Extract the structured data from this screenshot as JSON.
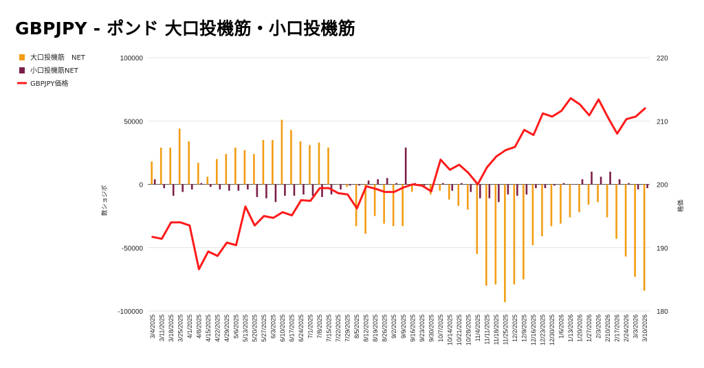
{
  "chart_data": {
    "type": "bar",
    "title": "GBPJPY - ポンド 大口投機筋・小口投機筋",
    "ylabel_left": "数ショジポ",
    "ylabel_right": "格価",
    "ylim_left": [
      -100000,
      100000
    ],
    "ylim_right": [
      180,
      220
    ],
    "yticks_left": [
      "100000",
      "50000",
      "0",
      "-50000",
      "-100000"
    ],
    "yticks_right": [
      "220",
      "210",
      "200",
      "190",
      "180"
    ],
    "grid": true,
    "legend_position": "top-left",
    "categories": [
      "3/4/2025",
      "3/11/2025",
      "3/18/2025",
      "3/25/2025",
      "4/1/2025",
      "4/8/2025",
      "4/15/2025",
      "4/22/2025",
      "4/29/2025",
      "5/6/2025",
      "5/13/2025",
      "5/20/2025",
      "5/27/2025",
      "6/3/2025",
      "6/10/2025",
      "6/17/2025",
      "6/24/2025",
      "7/1/2025",
      "7/8/2025",
      "7/15/2025",
      "7/22/2025",
      "7/29/2025",
      "8/5/2025",
      "8/12/2025",
      "8/19/2025",
      "8/26/2025",
      "9/2/2025",
      "9/9/2025",
      "9/16/2025",
      "9/23/2025",
      "9/30/2025",
      "10/7/2025",
      "10/14/2025",
      "10/21/2025",
      "10/28/2025",
      "11/4/2025",
      "11/11/2025",
      "11/18/2025",
      "11/25/2025",
      "12/2/2025",
      "12/9/2025",
      "12/16/2025",
      "12/23/2025",
      "12/30/2025",
      "1/6/2026",
      "1/13/2026",
      "1/20/2026",
      "1/27/2026",
      "2/3/2026",
      "2/10/2026",
      "2/17/2026",
      "2/24/2026",
      "3/3/2026",
      "3/10/2026"
    ],
    "series": [
      {
        "name": "大口投機筋　NET",
        "type": "bar",
        "axis": "left",
        "color": "#f39c12",
        "values": [
          18000,
          29000,
          29000,
          44000,
          34000,
          17000,
          6000,
          20000,
          24000,
          29000,
          27000,
          24000,
          35000,
          35000,
          51000,
          43000,
          34000,
          31000,
          33000,
          29000,
          0,
          -2000,
          -33000,
          -39000,
          -25000,
          -31000,
          -33000,
          -33000,
          -6000,
          0,
          -8000,
          -5000,
          -12000,
          -17000,
          -20000,
          -55000,
          -80000,
          -79000,
          -93000,
          -79000,
          -75000,
          -48000,
          -41000,
          -33000,
          -31000,
          -26000,
          -22000,
          -16000,
          -14000,
          -26000,
          -43000,
          -57000,
          -73000,
          -84000
        ]
      },
      {
        "name": "小口投機筋NET",
        "type": "bar",
        "axis": "left",
        "color": "#7b1e48",
        "values": [
          4000,
          -3000,
          -9000,
          -6000,
          -4000,
          1000,
          -2000,
          -4000,
          -5000,
          -5000,
          -4000,
          -10000,
          -11000,
          -14000,
          -9000,
          -9000,
          -8000,
          -9000,
          -10000,
          -8000,
          -4000,
          -1000,
          -1000,
          3000,
          4000,
          5000,
          1000,
          29000,
          1000,
          -1000,
          0,
          1000,
          -5000,
          1000,
          -6000,
          -11000,
          -11000,
          -14000,
          -8000,
          -9000,
          -8000,
          -3000,
          -3000,
          -1000,
          1000,
          0,
          4000,
          10000,
          6000,
          10000,
          4000,
          1000,
          -4000,
          -3000
        ]
      },
      {
        "name": "GBPJPY価格",
        "type": "line",
        "axis": "right",
        "color": "#ff1a1a",
        "values": [
          191.7,
          191.4,
          194.0,
          194.0,
          193.5,
          186.6,
          189.4,
          188.7,
          190.8,
          190.4,
          196.5,
          193.5,
          195.0,
          194.7,
          195.6,
          195.1,
          197.5,
          197.4,
          199.4,
          199.4,
          198.6,
          198.4,
          196.2,
          199.7,
          199.3,
          198.8,
          198.8,
          199.5,
          200.0,
          199.8,
          198.9,
          203.9,
          202.3,
          203.1,
          201.8,
          200.0,
          202.7,
          204.4,
          205.4,
          205.9,
          208.6,
          207.8,
          211.2,
          210.7,
          211.6,
          213.6,
          212.6,
          210.9,
          213.4,
          210.6,
          208.0,
          210.3,
          210.7,
          212.0
        ]
      }
    ]
  }
}
